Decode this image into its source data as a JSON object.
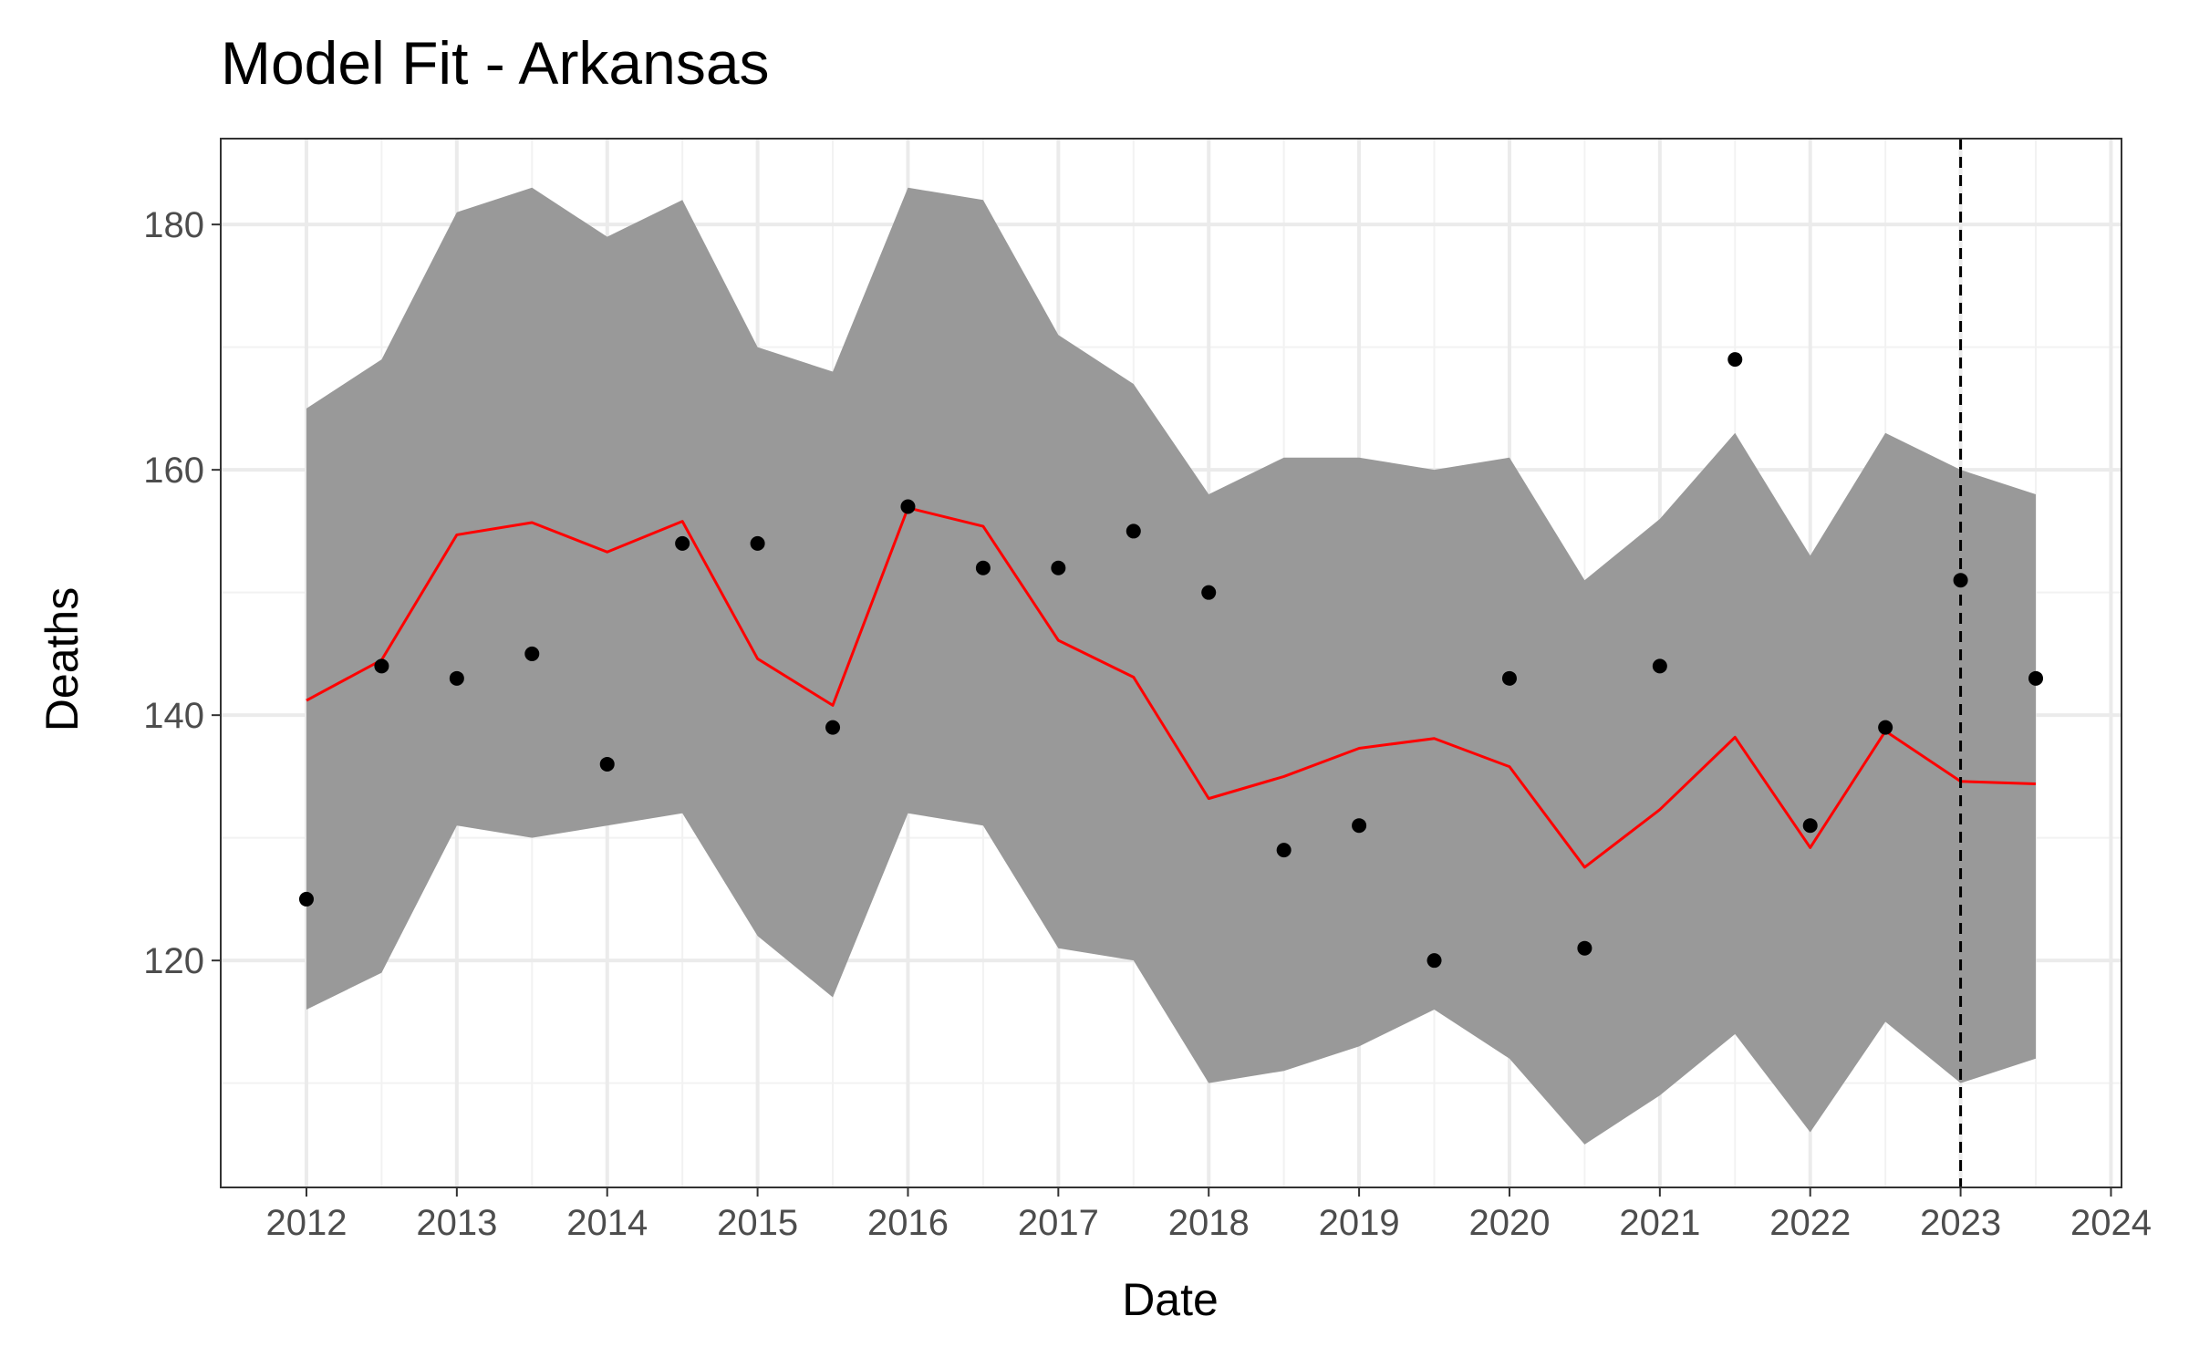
{
  "chart_data": {
    "type": "line",
    "title": "Model Fit - Arkansas",
    "xlabel": "Date",
    "ylabel": "Deaths",
    "x_ticks": [
      2012,
      2013,
      2014,
      2015,
      2016,
      2017,
      2018,
      2019,
      2020,
      2021,
      2022,
      2023,
      2024
    ],
    "y_ticks": [
      120,
      140,
      160,
      180
    ],
    "xlim": [
      2011.43,
      2024.07
    ],
    "ylim": [
      101.5,
      187
    ],
    "grid": true,
    "legend": "none",
    "x": [
      2012,
      2012.5,
      2013,
      2013.5,
      2014,
      2014.5,
      2015,
      2015.5,
      2016,
      2016.5,
      2017,
      2017.5,
      2018,
      2018.5,
      2019,
      2019.5,
      2020,
      2020.5,
      2021,
      2021.5,
      2022,
      2022.5,
      2023,
      2023.5
    ],
    "series": [
      {
        "type": "ribbon",
        "lower": [
          116,
          119,
          131,
          130,
          131,
          132,
          122,
          117,
          132,
          131,
          121,
          120,
          110,
          111,
          113,
          116,
          112,
          105,
          109,
          114,
          106,
          115,
          110,
          112
        ],
        "upper": [
          165,
          169,
          181,
          183,
          179,
          182,
          170,
          168,
          183,
          182,
          171,
          167,
          158,
          161,
          161,
          160,
          161,
          151,
          156,
          163,
          153,
          163,
          160,
          158
        ],
        "color": "#999999"
      },
      {
        "type": "line",
        "values": [
          141.2,
          144.5,
          154.7,
          155.7,
          153.3,
          155.8,
          144.6,
          140.8,
          156.9,
          155.4,
          146.1,
          143.1,
          133.2,
          135.0,
          137.3,
          138.1,
          135.8,
          127.6,
          132.3,
          138.2,
          129.2,
          138.7,
          134.6,
          134.4
        ],
        "color": "#ff0000"
      },
      {
        "type": "scatter",
        "values": [
          125,
          144,
          143,
          145,
          136,
          154,
          154,
          139,
          157,
          152,
          152,
          155,
          150,
          129,
          131,
          120,
          143,
          121,
          144,
          169,
          131,
          139,
          151,
          143
        ],
        "color": "#000000"
      }
    ],
    "annotations": [
      {
        "type": "vline",
        "x": 2023,
        "style": "dashed",
        "color": "#000000"
      }
    ]
  }
}
